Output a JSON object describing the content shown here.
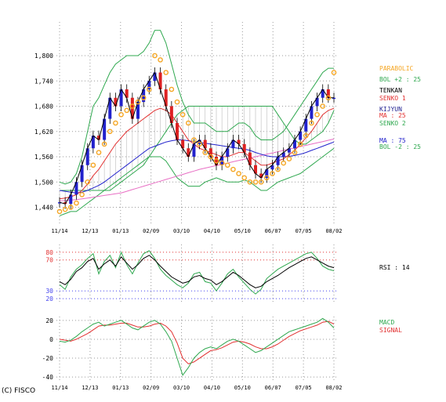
{
  "copyright": "(C) FISCO",
  "colors": {
    "price": "#000000",
    "up_candle": "#2222cc",
    "down_candle": "#dd2222",
    "parabolic": "#f5a623",
    "bol": "#2fa84f",
    "tenkan": "#a0a0a0",
    "kijun": "#1f1f8f",
    "senko1": "#e23030",
    "senko2": "#2fa84f",
    "ma75": "#2222cc",
    "ma25": "#e23030",
    "ma_pink": "#e86fc4",
    "rsi_black": "#000000",
    "rsi_green": "#2fa84f",
    "macd": "#2fa84f",
    "signal": "#e23030"
  },
  "chart_data": [
    {
      "type": "candlestick",
      "panel": "price",
      "ylim": [
        1400,
        1880
      ],
      "yticks": [
        "1,440",
        "1,500",
        "1,560",
        "1,620",
        "1,680",
        "1,740",
        "1,800"
      ],
      "ytick_values": [
        1440,
        1500,
        1560,
        1620,
        1680,
        1740,
        1800
      ],
      "xticks": [
        "11/14",
        "12/13",
        "01/13",
        "02/09",
        "03/10",
        "04/10",
        "05/10",
        "06/07",
        "07/05",
        "08/02"
      ],
      "grid": true,
      "legend": [
        {
          "label": "PARABOLIC",
          "color": "#f5a623"
        },
        {
          "label": "BOL +2 : 25",
          "color": "#2fa84f"
        },
        {
          "label": "TENKAN",
          "color": "#000000"
        },
        {
          "label": "SENKO 1",
          "color": "#e23030"
        },
        {
          "label": "KIJYUN",
          "color": "#1f1f8f"
        },
        {
          "label": "MA : 25",
          "color": "#e23030"
        },
        {
          "label": "SENKO 2",
          "color": "#2fa84f"
        },
        {
          "label": "MA : 75",
          "color": "#2222cc"
        },
        {
          "label": "BOL -2 : 25",
          "color": "#2fa84f"
        }
      ],
      "series": [
        {
          "name": "price_close",
          "values": [
            1452,
            1448,
            1470,
            1500,
            1540,
            1580,
            1610,
            1600,
            1650,
            1700,
            1680,
            1720,
            1700,
            1650,
            1690,
            1720,
            1740,
            1760,
            1720,
            1680,
            1640,
            1600,
            1580,
            1560,
            1590,
            1600,
            1580,
            1560,
            1540,
            1560,
            1580,
            1600,
            1590,
            1570,
            1540,
            1520,
            1510,
            1530,
            1540,
            1560,
            1570,
            1580,
            1600,
            1620,
            1650,
            1680,
            1700,
            1720,
            1700,
            1700
          ]
        },
        {
          "name": "parabolic",
          "values": [
            1430,
            1435,
            1440,
            1450,
            1470,
            1500,
            1540,
            1570,
            1590,
            1620,
            1640,
            1660,
            1670,
            1680,
            1690,
            1700,
            1720,
            1800,
            1790,
            1760,
            1720,
            1690,
            1660,
            1640,
            1600,
            1590,
            1570,
            1560,
            1550,
            1545,
            1540,
            1530,
            1520,
            1510,
            1500,
            1500,
            1500,
            1510,
            1520,
            1530,
            1545,
            1555,
            1570,
            1590,
            1610,
            1640,
            1660,
            1680,
            1700,
            1760
          ]
        },
        {
          "name": "ma_25",
          "values": [
            1460,
            1462,
            1465,
            1470,
            1480,
            1495,
            1515,
            1530,
            1550,
            1570,
            1590,
            1605,
            1620,
            1630,
            1640,
            1650,
            1660,
            1670,
            1675,
            1670,
            1660,
            1640,
            1620,
            1600,
            1590,
            1580,
            1575,
            1570,
            1565,
            1560,
            1560,
            1565,
            1570,
            1570,
            1560,
            1550,
            1540,
            1540,
            1545,
            1550,
            1555,
            1565,
            1575,
            1590,
            1605,
            1620,
            1640,
            1660,
            1670,
            1675
          ]
        },
        {
          "name": "ma_75",
          "values": [
            1480,
            1478,
            1476,
            1474,
            1476,
            1480,
            1486,
            1492,
            1500,
            1510,
            1520,
            1530,
            1540,
            1550,
            1560,
            1570,
            1580,
            1585,
            1590,
            1595,
            1598,
            1600,
            1600,
            1598,
            1596,
            1594,
            1592,
            1590,
            1588,
            1586,
            1584,
            1582,
            1580,
            1578,
            1575,
            1570,
            1566,
            1562,
            1560,
            1560,
            1560,
            1561,
            1563,
            1566,
            1570,
            1575,
            1580,
            1585,
            1590,
            1595
          ]
        },
        {
          "name": "ma_pink",
          "values": [
            1455,
            1456,
            1457,
            1458,
            1460,
            1462,
            1464,
            1466,
            1468,
            1470,
            1472,
            1474,
            1478,
            1482,
            1486,
            1490,
            1494,
            1498,
            1502,
            1506,
            1510,
            1514,
            1518,
            1522,
            1526,
            1530,
            1533,
            1536,
            1539,
            1542,
            1545,
            1548,
            1551,
            1554,
            1557,
            1560,
            1563,
            1566,
            1569,
            1572,
            1575,
            1578,
            1581,
            1584,
            1587,
            1590,
            1593,
            1596,
            1599,
            1602
          ]
        },
        {
          "name": "bol_upper",
          "values": [
            1500,
            1495,
            1500,
            1520,
            1560,
            1620,
            1680,
            1700,
            1730,
            1760,
            1780,
            1790,
            1800,
            1800,
            1800,
            1810,
            1830,
            1860,
            1860,
            1830,
            1780,
            1730,
            1690,
            1660,
            1640,
            1640,
            1640,
            1630,
            1620,
            1620,
            1620,
            1630,
            1640,
            1640,
            1630,
            1610,
            1600,
            1600,
            1600,
            1610,
            1620,
            1640,
            1660,
            1680,
            1700,
            1720,
            1740,
            1760,
            1770,
            1770
          ]
        },
        {
          "name": "bol_lower",
          "values": [
            1420,
            1425,
            1430,
            1430,
            1440,
            1450,
            1460,
            1470,
            1480,
            1490,
            1500,
            1510,
            1520,
            1530,
            1540,
            1550,
            1560,
            1560,
            1560,
            1550,
            1530,
            1510,
            1500,
            1490,
            1490,
            1490,
            1500,
            1505,
            1510,
            1505,
            1500,
            1500,
            1500,
            1505,
            1500,
            1490,
            1480,
            1480,
            1490,
            1500,
            1505,
            1510,
            1515,
            1520,
            1530,
            1540,
            1550,
            1560,
            1570,
            1580
          ]
        },
        {
          "name": "senko_span",
          "values": [
            1480,
            1480,
            1480,
            1480,
            1480,
            1480,
            1480,
            1480,
            1480,
            1480,
            1490,
            1500,
            1510,
            1520,
            1530,
            1540,
            1560,
            1580,
            1600,
            1620,
            1640,
            1660,
            1670,
            1680,
            1680,
            1680,
            1680,
            1680,
            1680,
            1680,
            1680,
            1680,
            1680,
            1680,
            1680,
            1680,
            1680,
            1680,
            1680,
            1660,
            1640,
            1620,
            1600,
            1590,
            1590,
            1600,
            1610,
            1620,
            1640,
            1670
          ]
        }
      ]
    },
    {
      "type": "line",
      "panel": "rsi",
      "ylim": [
        15,
        90
      ],
      "yticks": [
        "80",
        "70",
        "30",
        "20"
      ],
      "ytick_values": [
        80,
        70,
        30,
        20
      ],
      "legend": [
        {
          "label": "RSI : 14",
          "color": "#000000"
        }
      ],
      "series": [
        {
          "name": "rsi_14",
          "values": [
            42,
            38,
            45,
            55,
            60,
            68,
            72,
            58,
            65,
            70,
            62,
            74,
            66,
            58,
            64,
            72,
            76,
            70,
            62,
            55,
            48,
            44,
            40,
            42,
            48,
            50,
            46,
            44,
            38,
            42,
            48,
            54,
            50,
            44,
            38,
            34,
            36,
            42,
            46,
            50,
            55,
            60,
            64,
            68,
            72,
            74,
            70,
            66,
            62,
            60
          ]
        },
        {
          "name": "rsi_9",
          "values": [
            38,
            32,
            48,
            58,
            64,
            72,
            78,
            52,
            68,
            76,
            60,
            80,
            64,
            52,
            66,
            78,
            82,
            72,
            58,
            50,
            44,
            38,
            34,
            40,
            52,
            54,
            42,
            40,
            30,
            40,
            52,
            58,
            48,
            40,
            32,
            26,
            32,
            46,
            52,
            58,
            62,
            66,
            70,
            74,
            78,
            80,
            72,
            62,
            58,
            56
          ]
        }
      ]
    },
    {
      "type": "line",
      "panel": "macd",
      "ylim": [
        -44,
        24
      ],
      "yticks": [
        "20",
        "0",
        "-20",
        "-40"
      ],
      "ytick_values": [
        20,
        0,
        -20,
        -40
      ],
      "legend": [
        {
          "label": "MACD",
          "color": "#2fa84f"
        },
        {
          "label": "SIGNAL",
          "color": "#e23030"
        }
      ],
      "series": [
        {
          "name": "macd",
          "values": [
            -2,
            -3,
            -1,
            3,
            8,
            12,
            16,
            18,
            14,
            16,
            18,
            20,
            16,
            12,
            10,
            14,
            18,
            20,
            16,
            8,
            -2,
            -20,
            -38,
            -30,
            -20,
            -14,
            -10,
            -8,
            -10,
            -6,
            -2,
            0,
            -2,
            -6,
            -10,
            -14,
            -12,
            -8,
            -4,
            0,
            4,
            8,
            10,
            12,
            14,
            16,
            18,
            22,
            18,
            12
          ]
        },
        {
          "name": "signal",
          "values": [
            0,
            -1,
            -2,
            0,
            3,
            6,
            10,
            14,
            15,
            15,
            16,
            17,
            17,
            15,
            13,
            13,
            14,
            16,
            17,
            14,
            8,
            -4,
            -20,
            -26,
            -24,
            -20,
            -16,
            -12,
            -11,
            -9,
            -6,
            -3,
            -2,
            -3,
            -5,
            -8,
            -10,
            -10,
            -8,
            -5,
            -1,
            3,
            6,
            9,
            11,
            13,
            15,
            18,
            19,
            16
          ]
        }
      ]
    }
  ]
}
